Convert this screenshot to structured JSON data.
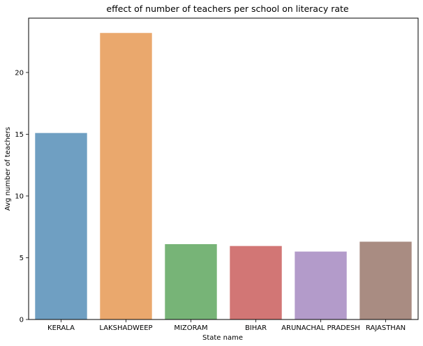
{
  "chart_data": {
    "type": "bar",
    "title": "effect of number of teachers per school on literacy rate",
    "xlabel": "State name",
    "ylabel": "Avg number of teachers",
    "categories": [
      "KERALA",
      "LAKSHADWEEP",
      "MIZORAM",
      "BIHAR",
      "ARUNACHAL PRADESH",
      "RAJASTHAN"
    ],
    "values": [
      15.1,
      23.2,
      6.1,
      5.95,
      5.5,
      6.3
    ],
    "colors": [
      "#6f9fc2",
      "#eaa86d",
      "#77b477",
      "#d27675",
      "#b39bca",
      "#a98c82"
    ],
    "yticks": [
      0,
      5,
      10,
      15,
      20
    ],
    "ylim": [
      0,
      24.4
    ],
    "grid": false,
    "legend": "none"
  }
}
